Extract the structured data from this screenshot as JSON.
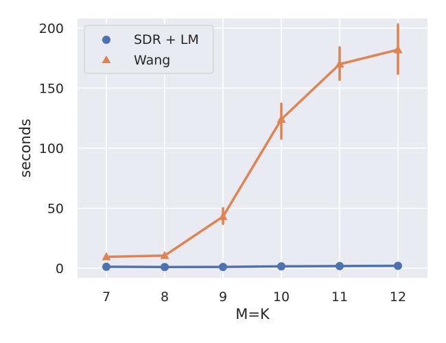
{
  "chart_data": {
    "type": "line",
    "x": [
      7,
      8,
      9,
      10,
      11,
      12
    ],
    "xtick_labels": [
      "7",
      "8",
      "9",
      "10",
      "11",
      "12"
    ],
    "xlabel": "M=K",
    "ylabel": "seconds",
    "ylim": [
      -8,
      208
    ],
    "yticks": [
      0,
      50,
      100,
      150,
      200
    ],
    "ytick_labels": [
      "0",
      "50",
      "100",
      "150",
      "200"
    ],
    "grid": true,
    "legend_position": "top-left",
    "series": [
      {
        "name": "SDR + LM",
        "marker": "circle",
        "color": "#4c72b0",
        "values": [
          1.2,
          1.0,
          1.1,
          1.6,
          1.8,
          2.0
        ],
        "err_low": [
          1.2,
          1.0,
          1.1,
          1.6,
          1.8,
          2.0
        ],
        "err_high": [
          1.2,
          1.0,
          1.1,
          1.6,
          1.8,
          2.0
        ]
      },
      {
        "name": "Wang",
        "marker": "triangle",
        "color": "#dd8452",
        "values": [
          9.5,
          10.5,
          43.0,
          124.0,
          170.0,
          182.0
        ],
        "err_low": [
          9.5,
          10.5,
          37.0,
          108.0,
          157.0,
          162.0
        ],
        "err_high": [
          9.5,
          10.5,
          50.0,
          137.0,
          184.0,
          203.0
        ]
      }
    ]
  }
}
